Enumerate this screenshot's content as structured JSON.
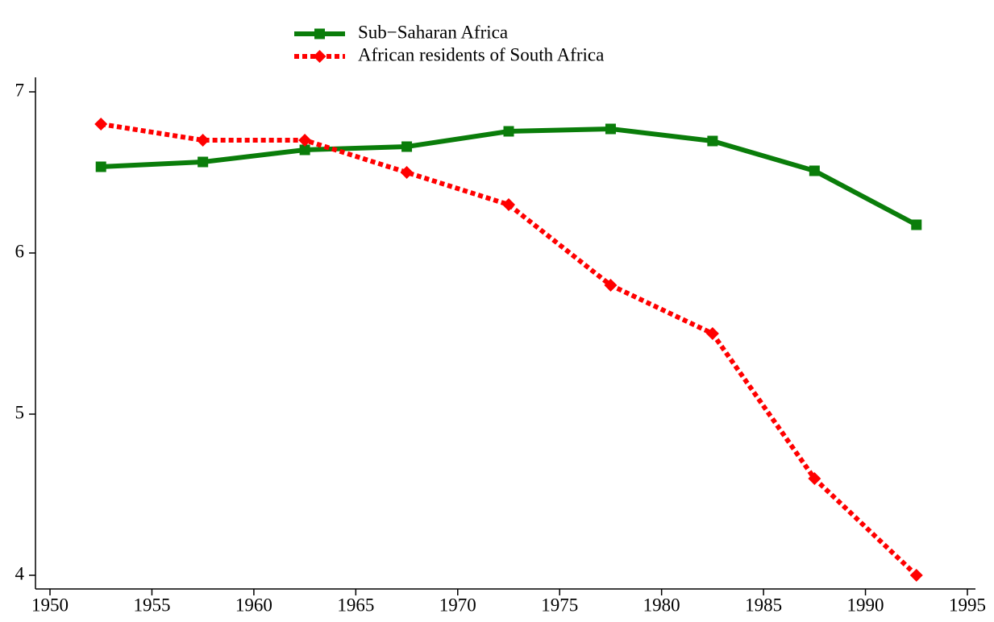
{
  "chart_data": {
    "type": "line",
    "x": [
      1952.5,
      1957.5,
      1962.5,
      1967.5,
      1972.5,
      1977.5,
      1982.5,
      1987.5,
      1992.5
    ],
    "series": [
      {
        "name": "Sub−Saharan Africa",
        "color": "#0a7d0a",
        "marker": "square",
        "linestyle": "solid",
        "values": [
          6.535,
          6.565,
          6.64,
          6.66,
          6.755,
          6.77,
          6.695,
          6.51,
          6.175
        ]
      },
      {
        "name": "African residents of South Africa",
        "color": "#ff0000",
        "marker": "diamond",
        "linestyle": "dotted",
        "values": [
          6.8,
          6.7,
          6.7,
          6.5,
          6.3,
          5.8,
          5.5,
          4.6,
          4.0
        ]
      }
    ],
    "xlim": [
      1950,
      1995
    ],
    "xticks": [
      1950,
      1955,
      1960,
      1965,
      1970,
      1975,
      1980,
      1985,
      1990,
      1995
    ],
    "ylim": [
      4,
      7
    ],
    "yticks": [
      4,
      5,
      6,
      7
    ],
    "grid": false,
    "legend": "top"
  }
}
